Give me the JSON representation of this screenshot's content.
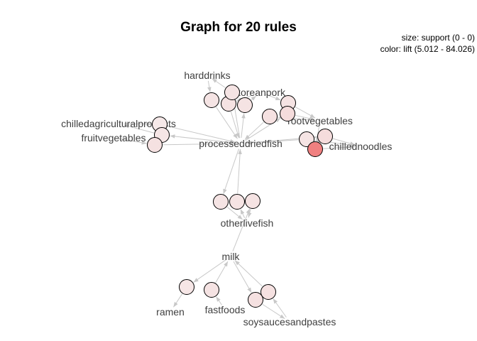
{
  "title": "Graph for 20 rules",
  "legend": {
    "size": "size: support (0 - 0)",
    "color": "color: lift (5.012 - 84.026)"
  },
  "items": [
    {
      "id": "harddrinks",
      "label": "harddrinks"
    },
    {
      "id": "koreanpork",
      "label": "koreanpork"
    },
    {
      "id": "rootvegetables",
      "label": "rootvegetables"
    },
    {
      "id": "chilledagriculturalproducts",
      "label": "chilledagriculturalproducts"
    },
    {
      "id": "fruitvegetables",
      "label": "fruitvegetables"
    },
    {
      "id": "processeddriedfish",
      "label": "processeddriedfish"
    },
    {
      "id": "chillednoodles",
      "label": "chillednoodles"
    },
    {
      "id": "otherlivefish",
      "label": "otherlivefish"
    },
    {
      "id": "milk",
      "label": "milk"
    },
    {
      "id": "ramen",
      "label": "ramen"
    },
    {
      "id": "fastfoods",
      "label": "fastfoods"
    },
    {
      "id": "soysaucesandpastes",
      "label": "soysaucesandpastes"
    }
  ],
  "rules": [
    {
      "id": "r1",
      "lhs": [
        "harddrinks"
      ],
      "rhs": "processeddriedfish",
      "fill": "#f5e4e4"
    },
    {
      "id": "r2",
      "lhs": [
        "koreanpork"
      ],
      "rhs": "processeddriedfish",
      "fill": "#f5e2e2"
    },
    {
      "id": "r3",
      "lhs": [
        "processeddriedfish"
      ],
      "rhs": "harddrinks",
      "fill": "#f5e4e4"
    },
    {
      "id": "r4",
      "lhs": [
        "processeddriedfish"
      ],
      "rhs": "koreanpork",
      "fill": "#f5e3e3"
    },
    {
      "id": "r5",
      "lhs": [
        "koreanpork"
      ],
      "rhs": "rootvegetables",
      "fill": "#f5e3e3"
    },
    {
      "id": "r6",
      "lhs": [
        "rootvegetables"
      ],
      "rhs": "processeddriedfish",
      "fill": "#f5e1e1"
    },
    {
      "id": "r7",
      "lhs": [
        "processeddriedfish"
      ],
      "rhs": "rootvegetables",
      "fill": "#f5dcdc"
    },
    {
      "id": "r8",
      "lhs": [
        "chilledagriculturalproducts"
      ],
      "rhs": "processeddriedfish",
      "fill": "#f6e9e9"
    },
    {
      "id": "r9",
      "lhs": [
        "processeddriedfish"
      ],
      "rhs": "chilledagriculturalproducts",
      "fill": "#f6e6e6"
    },
    {
      "id": "r10",
      "lhs": [
        "fruitvegetables"
      ],
      "rhs": "processeddriedfish",
      "fill": "#f5e1e1"
    },
    {
      "id": "r11",
      "lhs": [
        "chillednoodles"
      ],
      "rhs": "processeddriedfish",
      "fill": "#f5e4e4"
    },
    {
      "id": "r12",
      "lhs": [
        "processeddriedfish"
      ],
      "rhs": "chillednoodles",
      "fill": "#f5dcdc"
    },
    {
      "id": "r13",
      "lhs": [
        "rootvegetables"
      ],
      "rhs": "chillednoodles",
      "fill": "#f08080"
    },
    {
      "id": "r14",
      "lhs": [
        "processeddriedfish"
      ],
      "rhs": "otherlivefish",
      "fill": "#f5e4e4"
    },
    {
      "id": "r15",
      "lhs": [
        "otherlivefish"
      ],
      "rhs": "processeddriedfish",
      "fill": "#f5e4e4"
    },
    {
      "id": "r16",
      "lhs": [
        "milk"
      ],
      "rhs": "otherlivefish",
      "fill": "#f5e3e3"
    },
    {
      "id": "r17",
      "lhs": [
        "milk"
      ],
      "rhs": "ramen",
      "fill": "#f6e6e6"
    },
    {
      "id": "r18",
      "lhs": [
        "fastfoods"
      ],
      "rhs": "milk",
      "fill": "#f5e3e3"
    },
    {
      "id": "r19",
      "lhs": [
        "milk"
      ],
      "rhs": "soysaucesandpastes",
      "fill": "#f5e1e1"
    },
    {
      "id": "r20",
      "lhs": [
        "soysaucesandpastes"
      ],
      "rhs": "milk",
      "fill": "#f5e1e1"
    }
  ]
}
